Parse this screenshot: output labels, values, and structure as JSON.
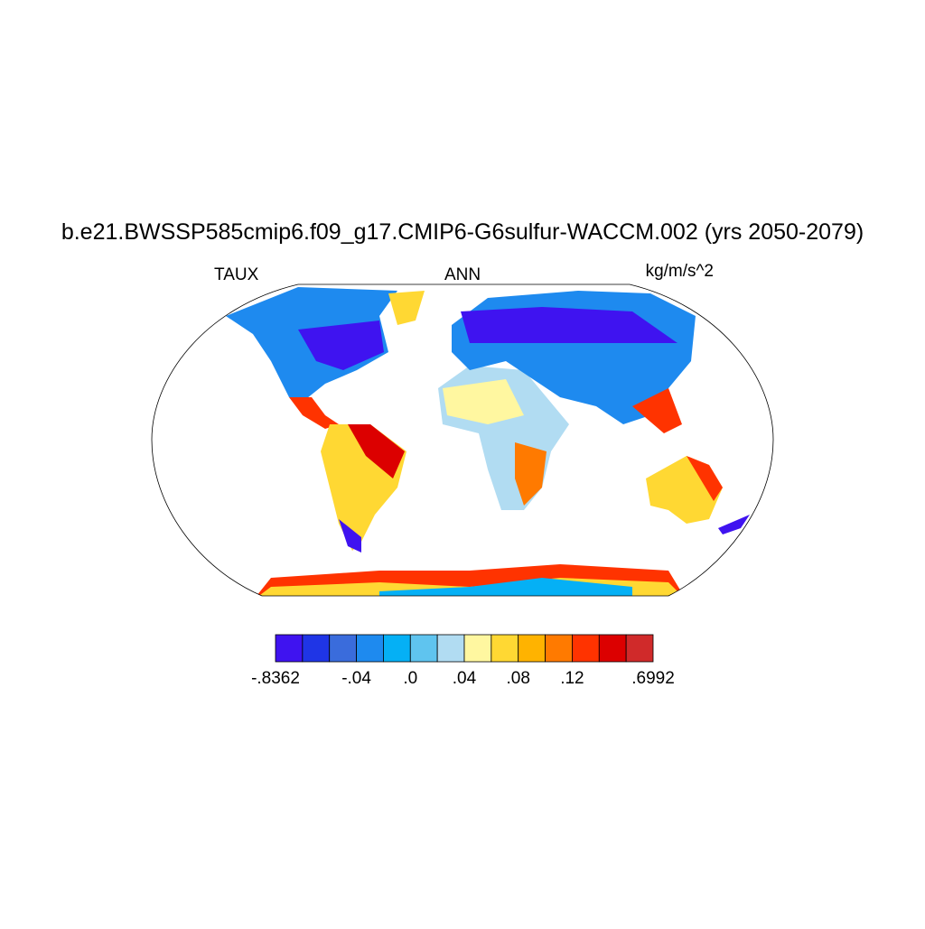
{
  "title": "b.e21.BWSSP585cmip6.f09_g17.CMIP6-G6sulfur-WACCM.002 (yrs 2050-2079)",
  "left_label": "TAUX",
  "center_label": "ANN",
  "right_label": "kg/m/s^2",
  "colorbar": {
    "colors": [
      "#3f13f0",
      "#1f35e6",
      "#3a6cdc",
      "#1e8aef",
      "#05b0f5",
      "#5fc4ef",
      "#b1dcf2",
      "#fff7a0",
      "#ffd833",
      "#ffb300",
      "#ff7a00",
      "#ff3300",
      "#dc0000",
      "#d02a2a"
    ],
    "ticks": [
      {
        "value": -0.8362,
        "label": "-.8362"
      },
      {
        "value": -0.04,
        "label": "-.04"
      },
      {
        "value": 0,
        "label": ".0"
      },
      {
        "value": 0.04,
        "label": ".04"
      },
      {
        "value": 0.08,
        "label": ".08"
      },
      {
        "value": 0.12,
        "label": ".12"
      },
      {
        "value": 0.6992,
        "label": ".6992"
      }
    ]
  }
}
